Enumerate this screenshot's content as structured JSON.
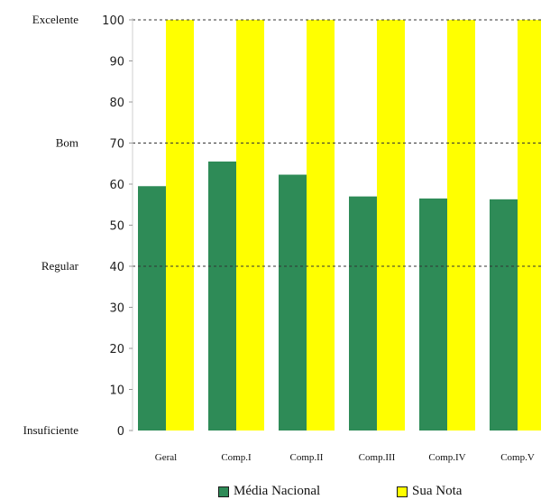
{
  "chart_data": {
    "type": "bar",
    "categories": [
      "Geral",
      "Comp.I",
      "Comp.II",
      "Comp.III",
      "Comp.IV",
      "Comp.V"
    ],
    "series": [
      {
        "name": "Média Nacional",
        "values": [
          59.5,
          65.5,
          62.3,
          57.0,
          56.5,
          56.3
        ],
        "color": "#2e8b57"
      },
      {
        "name": "Sua Nota",
        "values": [
          100,
          100,
          100,
          100,
          100,
          100
        ],
        "color": "#ffff00"
      }
    ],
    "ylim": [
      0,
      100
    ],
    "yticks": [
      0,
      10,
      20,
      30,
      40,
      50,
      60,
      70,
      80,
      90,
      100
    ],
    "reference_lines": [
      {
        "label": "Excelente",
        "value": 100
      },
      {
        "label": "Bom",
        "value": 70
      },
      {
        "label": "Regular",
        "value": 40
      },
      {
        "label": "Insuficiente",
        "value": 0
      }
    ],
    "legend_position": "bottom-center"
  }
}
